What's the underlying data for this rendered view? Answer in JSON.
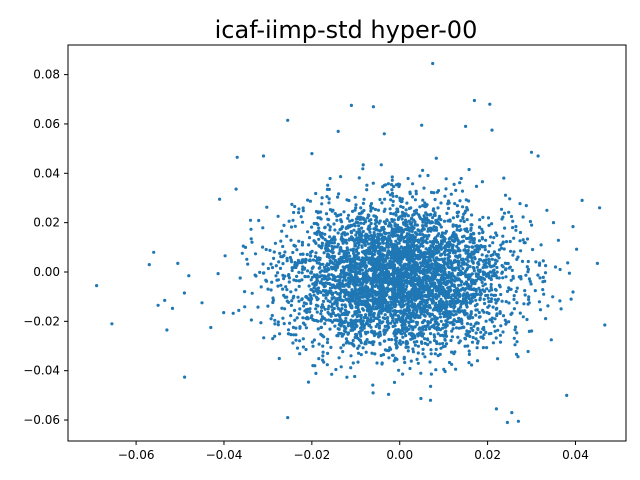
{
  "chart_data": {
    "type": "scatter",
    "title": "icaf-iimp-std hyper-00",
    "xlabel": "",
    "ylabel": "",
    "xlim": [
      -0.0755,
      0.0515
    ],
    "ylim": [
      -0.0685,
      0.092
    ],
    "xticks": [
      -0.06,
      -0.04,
      -0.02,
      0.0,
      0.02,
      0.04
    ],
    "xtick_labels": [
      "−0.06",
      "−0.04",
      "−0.02",
      "0.00",
      "0.02",
      "0.04"
    ],
    "yticks": [
      -0.06,
      -0.04,
      -0.02,
      0.0,
      0.02,
      0.04,
      0.06,
      0.08
    ],
    "ytick_labels": [
      "−0.06",
      "−0.04",
      "−0.02",
      "0.00",
      "0.02",
      "0.04",
      "0.06",
      "0.08"
    ],
    "grid": false,
    "legend": "none",
    "marker_color": "#1f77b4",
    "cluster": {
      "count": 4600,
      "center_x": 0.0,
      "center_y": -0.002,
      "std_x": 0.0125,
      "std_y": 0.0145
    },
    "points": [
      {
        "x": -0.069,
        "y": -0.0055
      },
      {
        "x": -0.0655,
        "y": -0.021
      },
      {
        "x": -0.057,
        "y": 0.003
      },
      {
        "x": -0.056,
        "y": 0.008
      },
      {
        "x": -0.055,
        "y": -0.0135
      },
      {
        "x": -0.0535,
        "y": -0.0115
      },
      {
        "x": -0.053,
        "y": -0.0235
      },
      {
        "x": -0.0505,
        "y": 0.0035
      },
      {
        "x": -0.049,
        "y": -0.0085
      },
      {
        "x": -0.048,
        "y": -0.0015
      },
      {
        "x": -0.045,
        "y": -0.0125
      },
      {
        "x": -0.043,
        "y": -0.0225
      },
      {
        "x": -0.041,
        "y": 0.0295
      },
      {
        "x": -0.037,
        "y": 0.0465
      },
      {
        "x": -0.031,
        "y": 0.047
      },
      {
        "x": -0.0255,
        "y": 0.0615
      },
      {
        "x": -0.0255,
        "y": -0.059
      },
      {
        "x": -0.02,
        "y": 0.048
      },
      {
        "x": -0.014,
        "y": 0.057
      },
      {
        "x": -0.011,
        "y": 0.0675
      },
      {
        "x": -0.006,
        "y": 0.067
      },
      {
        "x": -0.0035,
        "y": 0.056
      },
      {
        "x": 0.005,
        "y": 0.0595
      },
      {
        "x": 0.0075,
        "y": 0.0845
      },
      {
        "x": 0.007,
        "y": -0.052
      },
      {
        "x": 0.017,
        "y": 0.0695
      },
      {
        "x": 0.0205,
        "y": 0.068
      },
      {
        "x": 0.021,
        "y": 0.0575
      },
      {
        "x": 0.015,
        "y": 0.059
      },
      {
        "x": 0.022,
        "y": -0.0555
      },
      {
        "x": 0.0245,
        "y": -0.061
      },
      {
        "x": 0.0255,
        "y": -0.057
      },
      {
        "x": 0.027,
        "y": -0.0605
      },
      {
        "x": 0.03,
        "y": 0.0485
      },
      {
        "x": 0.0315,
        "y": 0.047
      },
      {
        "x": 0.0335,
        "y": 0.025
      },
      {
        "x": 0.035,
        "y": 0.02
      },
      {
        "x": 0.0345,
        "y": -0.0275
      },
      {
        "x": 0.0365,
        "y": 0.001
      },
      {
        "x": 0.038,
        "y": -0.05
      },
      {
        "x": 0.039,
        "y": -0.011
      },
      {
        "x": 0.0415,
        "y": 0.029
      },
      {
        "x": 0.045,
        "y": 0.0035
      },
      {
        "x": 0.0455,
        "y": 0.026
      }
    ]
  }
}
